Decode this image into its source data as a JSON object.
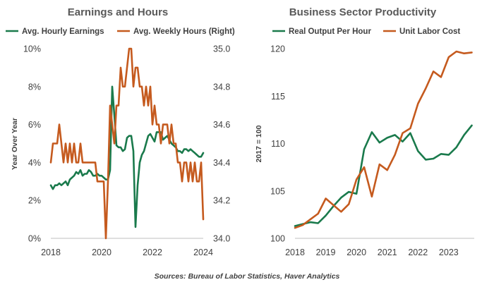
{
  "footer": {
    "source": "Sources: Bureau of Labor Statistics, Haver Analytics"
  },
  "colors": {
    "green": "#1a7a4c",
    "orange": "#c55a1e",
    "axis": "#bfbfbf",
    "text": "#404040"
  },
  "chart_data": [
    {
      "type": "line",
      "title": "Earnings and Hours",
      "ylabel": "Year Over Year",
      "x_range": [
        2018,
        2024
      ],
      "x_ticks": [
        "2018",
        "2020",
        "2022",
        "2024"
      ],
      "y_left": {
        "range": [
          0,
          10
        ],
        "ticks": [
          "0%",
          "2%",
          "4%",
          "6%",
          "8%",
          "10%"
        ]
      },
      "y_right": {
        "range": [
          34.0,
          35.0
        ],
        "ticks": [
          "34.0",
          "34.2",
          "34.4",
          "34.6",
          "34.8",
          "35.0"
        ]
      },
      "grid": false,
      "legend": "top",
      "series": [
        {
          "name": "Avg. Hourly Earnings",
          "color": "#1a7a4c",
          "axis": "left",
          "x": [
            2018.0,
            2018.083,
            2018.167,
            2018.25,
            2018.333,
            2018.417,
            2018.5,
            2018.583,
            2018.667,
            2018.75,
            2018.833,
            2018.917,
            2019.0,
            2019.083,
            2019.167,
            2019.25,
            2019.333,
            2019.417,
            2019.5,
            2019.583,
            2019.667,
            2019.75,
            2019.833,
            2019.917,
            2020.0,
            2020.083,
            2020.167,
            2020.25,
            2020.333,
            2020.417,
            2020.5,
            2020.583,
            2020.667,
            2020.75,
            2020.833,
            2020.917,
            2021.0,
            2021.083,
            2021.167,
            2021.25,
            2021.333,
            2021.417,
            2021.5,
            2021.583,
            2021.667,
            2021.75,
            2021.833,
            2021.917,
            2022.0,
            2022.083,
            2022.167,
            2022.25,
            2022.333,
            2022.417,
            2022.5,
            2022.583,
            2022.667,
            2022.75,
            2022.833,
            2022.917,
            2023.0,
            2023.083,
            2023.167,
            2023.25,
            2023.333,
            2023.417,
            2023.5,
            2023.583,
            2023.667,
            2023.75,
            2023.833,
            2023.917,
            2024.0
          ],
          "values": [
            2.8,
            2.6,
            2.8,
            2.8,
            2.9,
            2.8,
            2.9,
            3.0,
            2.8,
            3.1,
            3.2,
            3.3,
            3.5,
            3.4,
            3.6,
            3.3,
            3.4,
            3.4,
            3.6,
            3.5,
            3.3,
            3.3,
            3.4,
            3.3,
            3.3,
            3.2,
            3.1,
            3.1,
            3.6,
            8.0,
            6.5,
            4.9,
            4.8,
            4.8,
            4.6,
            4.7,
            5.3,
            5.4,
            5.4,
            4.6,
            0.6,
            2.8,
            4.0,
            4.4,
            4.6,
            5.0,
            5.4,
            5.5,
            5.3,
            5.1,
            5.6,
            5.6,
            5.6,
            5.2,
            5.3,
            5.4,
            5.2,
            5.0,
            4.9,
            4.8,
            4.6,
            4.6,
            4.5,
            4.7,
            4.7,
            4.6,
            4.7,
            4.6,
            4.5,
            4.4,
            4.3,
            4.3,
            4.5
          ]
        },
        {
          "name": "Avg. Weekly Hours (Right)",
          "color": "#c55a1e",
          "axis": "right",
          "x": [
            2018.0,
            2018.083,
            2018.167,
            2018.25,
            2018.333,
            2018.417,
            2018.5,
            2018.583,
            2018.667,
            2018.75,
            2018.833,
            2018.917,
            2019.0,
            2019.083,
            2019.167,
            2019.25,
            2019.333,
            2019.417,
            2019.5,
            2019.583,
            2019.667,
            2019.75,
            2019.833,
            2019.917,
            2020.0,
            2020.083,
            2020.167,
            2020.25,
            2020.333,
            2020.417,
            2020.5,
            2020.583,
            2020.667,
            2020.75,
            2020.833,
            2020.917,
            2021.0,
            2021.083,
            2021.167,
            2021.25,
            2021.333,
            2021.417,
            2021.5,
            2021.583,
            2021.667,
            2021.75,
            2021.833,
            2021.917,
            2022.0,
            2022.083,
            2022.167,
            2022.25,
            2022.333,
            2022.417,
            2022.5,
            2022.583,
            2022.667,
            2022.75,
            2022.833,
            2022.917,
            2023.0,
            2023.083,
            2023.167,
            2023.25,
            2023.333,
            2023.417,
            2023.5,
            2023.583,
            2023.667,
            2023.75,
            2023.833,
            2023.917,
            2024.0
          ],
          "values": [
            34.4,
            34.5,
            34.5,
            34.5,
            34.6,
            34.5,
            34.4,
            34.5,
            34.4,
            34.5,
            34.4,
            34.5,
            34.4,
            34.4,
            34.5,
            34.4,
            34.4,
            34.4,
            34.4,
            34.4,
            34.4,
            34.4,
            34.3,
            34.3,
            34.3,
            34.3,
            34.0,
            34.3,
            34.7,
            34.6,
            34.5,
            34.7,
            34.7,
            34.9,
            34.8,
            34.8,
            34.9,
            35.0,
            35.0,
            34.8,
            34.9,
            34.9,
            34.8,
            34.8,
            34.7,
            34.8,
            34.7,
            34.8,
            34.6,
            34.7,
            34.6,
            34.6,
            34.5,
            34.6,
            34.6,
            34.6,
            34.5,
            34.6,
            34.5,
            34.5,
            34.4,
            34.4,
            34.3,
            34.4,
            34.4,
            34.3,
            34.4,
            34.3,
            34.4,
            34.3,
            34.3,
            34.4,
            34.1
          ]
        }
      ]
    },
    {
      "type": "line",
      "title": "Business Sector Productivity",
      "ylabel": "2017 = 100",
      "x_range": [
        2018,
        2023.83
      ],
      "x_ticks": [
        "2018",
        "2019",
        "2020",
        "2021",
        "2022",
        "2023"
      ],
      "y_left": {
        "range": [
          100,
          120
        ],
        "ticks": [
          "100",
          "105",
          "110",
          "115",
          "120"
        ]
      },
      "grid": false,
      "legend": "top",
      "series": [
        {
          "name": "Real Output Per Hour",
          "color": "#1a7a4c",
          "x": [
            2018.0,
            2018.25,
            2018.5,
            2018.75,
            2019.0,
            2019.25,
            2019.5,
            2019.75,
            2020.0,
            2020.25,
            2020.5,
            2020.75,
            2021.0,
            2021.25,
            2021.5,
            2021.75,
            2022.0,
            2022.25,
            2022.5,
            2022.75,
            2023.0,
            2023.25,
            2023.5,
            2023.75
          ],
          "values": [
            101.3,
            101.5,
            101.7,
            101.6,
            102.4,
            103.4,
            104.3,
            104.9,
            104.7,
            109.4,
            111.2,
            110.1,
            110.6,
            110.9,
            110.2,
            111.1,
            109.2,
            108.3,
            108.4,
            108.9,
            108.8,
            109.6,
            110.9,
            111.9
          ]
        },
        {
          "name": "Unit Labor Cost",
          "color": "#c55a1e",
          "x": [
            2018.0,
            2018.25,
            2018.5,
            2018.75,
            2019.0,
            2019.25,
            2019.5,
            2019.75,
            2020.0,
            2020.25,
            2020.5,
            2020.75,
            2021.0,
            2021.25,
            2021.5,
            2021.75,
            2022.0,
            2022.25,
            2022.5,
            2022.75,
            2023.0,
            2023.25,
            2023.5,
            2023.75
          ],
          "values": [
            101.1,
            101.4,
            102.0,
            102.6,
            104.2,
            103.5,
            102.8,
            103.6,
            106.2,
            107.5,
            104.4,
            107.8,
            107.2,
            108.8,
            111.1,
            111.6,
            114.2,
            115.8,
            117.6,
            117.0,
            119.1,
            119.7,
            119.5,
            119.6
          ]
        }
      ]
    }
  ]
}
